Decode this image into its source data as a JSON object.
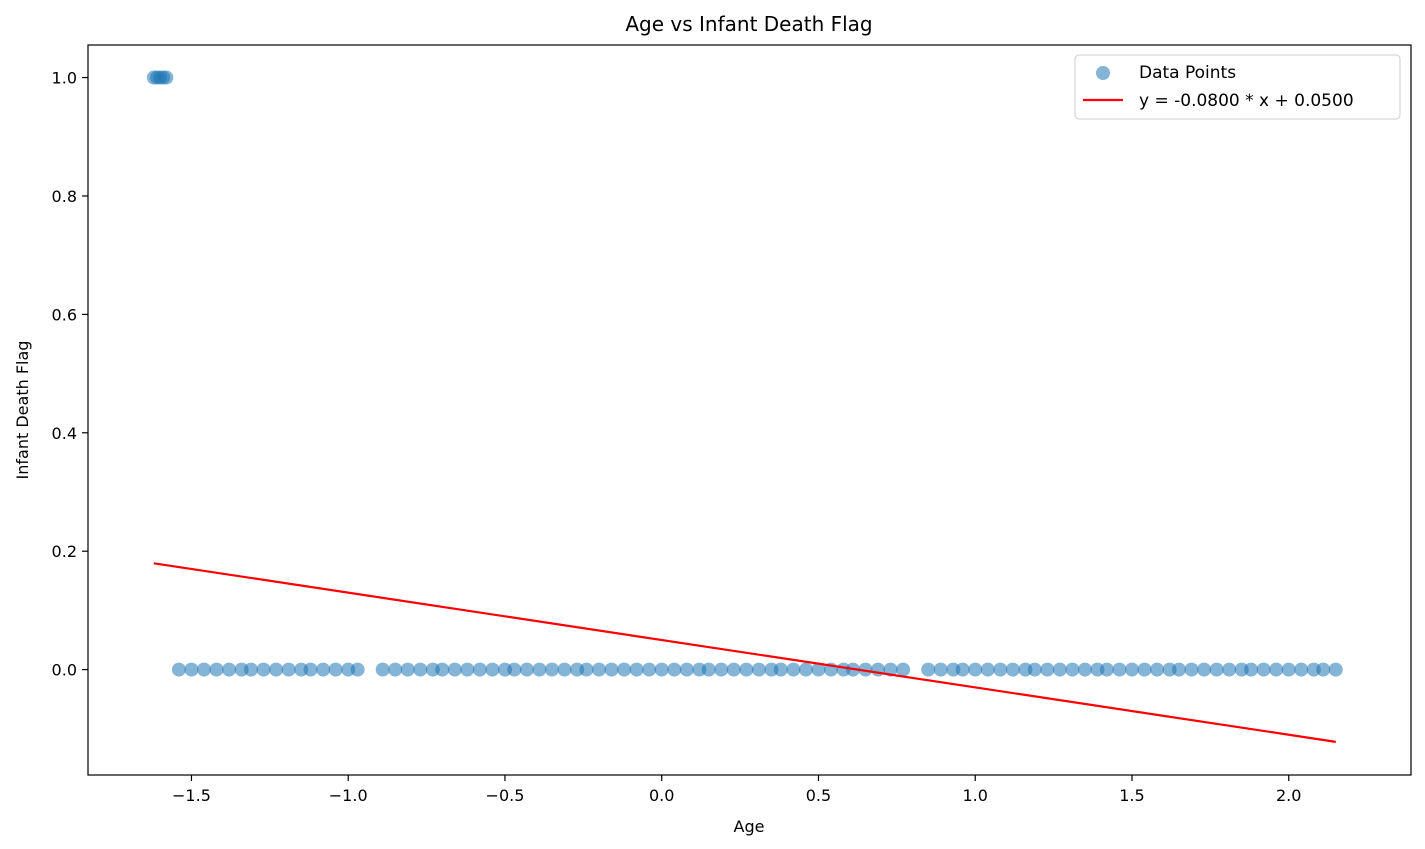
{
  "chart_data": {
    "type": "scatter",
    "title": "Age vs Infant Death Flag",
    "xlabel": "Age",
    "ylabel": "Infant Death Flag",
    "xlim": [
      -1.83,
      2.39
    ],
    "ylim": [
      -0.178,
      1.055
    ],
    "x_ticks": [
      -1.5,
      -1.0,
      -0.5,
      0.0,
      0.5,
      1.0,
      1.5,
      2.0
    ],
    "x_tick_labels": [
      "−1.5",
      "−1.0",
      "−0.5",
      "0.0",
      "0.5",
      "1.0",
      "1.5",
      "2.0"
    ],
    "y_ticks": [
      0.0,
      0.2,
      0.4,
      0.6,
      0.8,
      1.0
    ],
    "y_tick_labels": [
      "0.0",
      "0.2",
      "0.4",
      "0.6",
      "0.8",
      "1.0"
    ],
    "grid": false,
    "legend_position": "top-right",
    "series": [
      {
        "name": "Data Points",
        "kind": "scatter",
        "color": "#1f77b4",
        "alpha": 0.55,
        "points": [
          {
            "x": -1.62,
            "y": 1.0
          },
          {
            "x": -1.61,
            "y": 1.0
          },
          {
            "x": -1.6,
            "y": 1.0
          },
          {
            "x": -1.59,
            "y": 1.0
          },
          {
            "x": -1.58,
            "y": 1.0
          },
          {
            "x": -1.54,
            "y": 0.0
          },
          {
            "x": -1.5,
            "y": 0.0
          },
          {
            "x": -1.46,
            "y": 0.0
          },
          {
            "x": -1.42,
            "y": 0.0
          },
          {
            "x": -1.38,
            "y": 0.0
          },
          {
            "x": -1.34,
            "y": 0.0
          },
          {
            "x": -1.31,
            "y": 0.0
          },
          {
            "x": -1.27,
            "y": 0.0
          },
          {
            "x": -1.23,
            "y": 0.0
          },
          {
            "x": -1.19,
            "y": 0.0
          },
          {
            "x": -1.15,
            "y": 0.0
          },
          {
            "x": -1.12,
            "y": 0.0
          },
          {
            "x": -1.08,
            "y": 0.0
          },
          {
            "x": -1.04,
            "y": 0.0
          },
          {
            "x": -1.0,
            "y": 0.0
          },
          {
            "x": -0.97,
            "y": 0.0
          },
          {
            "x": -0.89,
            "y": 0.0
          },
          {
            "x": -0.85,
            "y": 0.0
          },
          {
            "x": -0.81,
            "y": 0.0
          },
          {
            "x": -0.77,
            "y": 0.0
          },
          {
            "x": -0.73,
            "y": 0.0
          },
          {
            "x": -0.7,
            "y": 0.0
          },
          {
            "x": -0.66,
            "y": 0.0
          },
          {
            "x": -0.62,
            "y": 0.0
          },
          {
            "x": -0.58,
            "y": 0.0
          },
          {
            "x": -0.54,
            "y": 0.0
          },
          {
            "x": -0.5,
            "y": 0.0
          },
          {
            "x": -0.47,
            "y": 0.0
          },
          {
            "x": -0.43,
            "y": 0.0
          },
          {
            "x": -0.39,
            "y": 0.0
          },
          {
            "x": -0.35,
            "y": 0.0
          },
          {
            "x": -0.31,
            "y": 0.0
          },
          {
            "x": -0.27,
            "y": 0.0
          },
          {
            "x": -0.24,
            "y": 0.0
          },
          {
            "x": -0.2,
            "y": 0.0
          },
          {
            "x": -0.16,
            "y": 0.0
          },
          {
            "x": -0.12,
            "y": 0.0
          },
          {
            "x": -0.08,
            "y": 0.0
          },
          {
            "x": -0.04,
            "y": 0.0
          },
          {
            "x": 0.0,
            "y": 0.0
          },
          {
            "x": 0.04,
            "y": 0.0
          },
          {
            "x": 0.08,
            "y": 0.0
          },
          {
            "x": 0.12,
            "y": 0.0
          },
          {
            "x": 0.15,
            "y": 0.0
          },
          {
            "x": 0.19,
            "y": 0.0
          },
          {
            "x": 0.23,
            "y": 0.0
          },
          {
            "x": 0.27,
            "y": 0.0
          },
          {
            "x": 0.31,
            "y": 0.0
          },
          {
            "x": 0.35,
            "y": 0.0
          },
          {
            "x": 0.38,
            "y": 0.0
          },
          {
            "x": 0.42,
            "y": 0.0
          },
          {
            "x": 0.46,
            "y": 0.0
          },
          {
            "x": 0.5,
            "y": 0.0
          },
          {
            "x": 0.54,
            "y": 0.0
          },
          {
            "x": 0.58,
            "y": 0.0
          },
          {
            "x": 0.61,
            "y": 0.0
          },
          {
            "x": 0.65,
            "y": 0.0
          },
          {
            "x": 0.69,
            "y": 0.0
          },
          {
            "x": 0.73,
            "y": 0.0
          },
          {
            "x": 0.77,
            "y": 0.0
          },
          {
            "x": 0.85,
            "y": 0.0
          },
          {
            "x": 0.89,
            "y": 0.0
          },
          {
            "x": 0.93,
            "y": 0.0
          },
          {
            "x": 0.96,
            "y": 0.0
          },
          {
            "x": 1.0,
            "y": 0.0
          },
          {
            "x": 1.04,
            "y": 0.0
          },
          {
            "x": 1.08,
            "y": 0.0
          },
          {
            "x": 1.12,
            "y": 0.0
          },
          {
            "x": 1.16,
            "y": 0.0
          },
          {
            "x": 1.19,
            "y": 0.0
          },
          {
            "x": 1.23,
            "y": 0.0
          },
          {
            "x": 1.27,
            "y": 0.0
          },
          {
            "x": 1.31,
            "y": 0.0
          },
          {
            "x": 1.35,
            "y": 0.0
          },
          {
            "x": 1.39,
            "y": 0.0
          },
          {
            "x": 1.42,
            "y": 0.0
          },
          {
            "x": 1.46,
            "y": 0.0
          },
          {
            "x": 1.5,
            "y": 0.0
          },
          {
            "x": 1.54,
            "y": 0.0
          },
          {
            "x": 1.58,
            "y": 0.0
          },
          {
            "x": 1.62,
            "y": 0.0
          },
          {
            "x": 1.65,
            "y": 0.0
          },
          {
            "x": 1.69,
            "y": 0.0
          },
          {
            "x": 1.73,
            "y": 0.0
          },
          {
            "x": 1.77,
            "y": 0.0
          },
          {
            "x": 1.81,
            "y": 0.0
          },
          {
            "x": 1.85,
            "y": 0.0
          },
          {
            "x": 1.88,
            "y": 0.0
          },
          {
            "x": 1.92,
            "y": 0.0
          },
          {
            "x": 1.96,
            "y": 0.0
          },
          {
            "x": 2.0,
            "y": 0.0
          },
          {
            "x": 2.04,
            "y": 0.0
          },
          {
            "x": 2.08,
            "y": 0.0
          },
          {
            "x": 2.11,
            "y": 0.0
          },
          {
            "x": 2.15,
            "y": 0.0
          }
        ]
      },
      {
        "name": "y = -0.0800 * x + 0.0500",
        "kind": "line",
        "color": "#ff0000",
        "slope": -0.08,
        "intercept": 0.05,
        "x_range": [
          -1.62,
          2.15
        ]
      }
    ]
  }
}
